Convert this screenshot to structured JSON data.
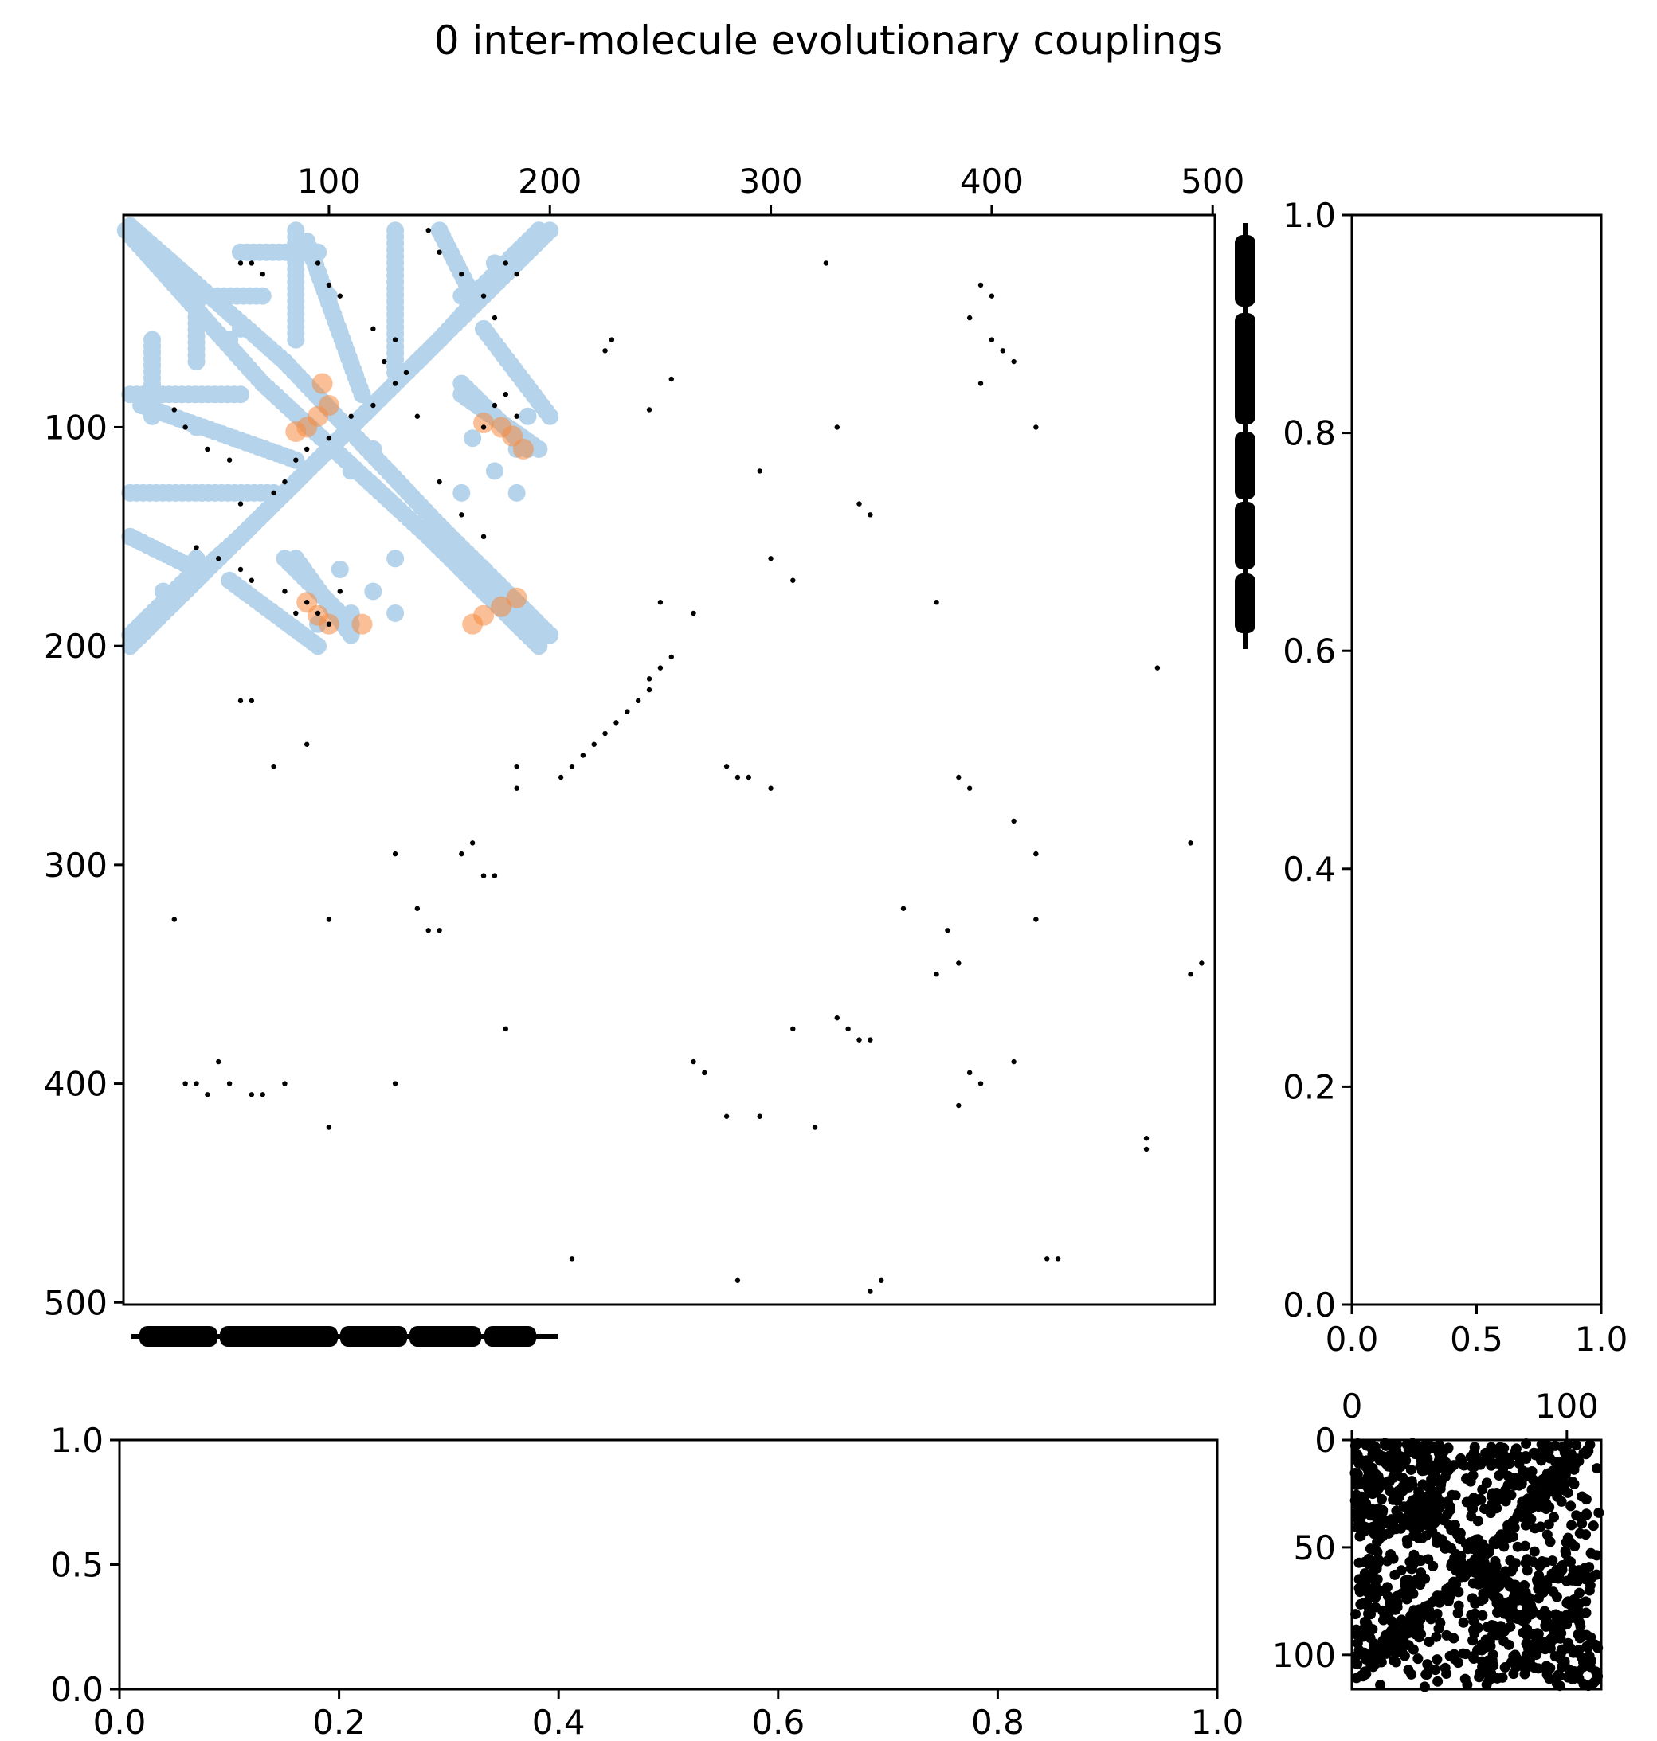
{
  "title": "0 inter-molecule evolutionary couplings",
  "colors": {
    "contact": "#b5d3ea",
    "coupling": "#f58a40",
    "ec": "#000000",
    "axis": "#000000"
  },
  "chart_data": [
    {
      "id": "main",
      "type": "scatter",
      "title": "0 inter-molecule evolutionary couplings",
      "xlim": [
        7,
        501
      ],
      "ylim": [
        501,
        3
      ],
      "x_axis_position": "top",
      "xticks": [
        100,
        200,
        300,
        400,
        500
      ],
      "yticks": [
        100,
        200,
        300,
        400,
        500
      ],
      "series": [
        {
          "role": "contact",
          "color": "#b5d3ea",
          "segments": [
            [
              10,
              8,
              80,
              70
            ],
            [
              80,
              70,
              150,
              145
            ],
            [
              150,
              145,
              200,
              195
            ],
            [
              10,
              195,
              60,
              150
            ],
            [
              60,
              150,
              140,
              70
            ],
            [
              140,
              70,
              200,
              10
            ],
            [
              90,
              15,
              115,
              85
            ],
            [
              150,
              10,
              165,
              40
            ],
            [
              165,
              40,
              195,
              10
            ],
            [
              10,
              85,
              60,
              85
            ],
            [
              10,
              130,
              75,
              130
            ],
            [
              80,
              160,
              110,
              190
            ],
            [
              165,
              170,
              195,
              195
            ],
            [
              170,
              55,
              200,
              95
            ],
            [
              160,
              85,
              195,
              110
            ],
            [
              60,
              20,
              95,
              20
            ],
            [
              35,
              40,
              70,
              40
            ]
          ],
          "points": [
            [
              20,
              95
            ],
            [
              40,
              100
            ],
            [
              55,
              60
            ],
            [
              120,
              110
            ],
            [
              130,
              160
            ],
            [
              175,
              120
            ],
            [
              185,
              130
            ],
            [
              110,
              185
            ],
            [
              95,
              190
            ],
            [
              105,
              165
            ],
            [
              175,
              95
            ],
            [
              40,
              160
            ],
            [
              25,
              175
            ]
          ]
        },
        {
          "role": "coupling",
          "color": "#f58a40",
          "points": [
            [
              90,
              100
            ],
            [
              95,
              95
            ],
            [
              100,
              90
            ],
            [
              97,
              80
            ],
            [
              85,
              102
            ],
            [
              170,
              98
            ],
            [
              178,
              100
            ],
            [
              183,
              104
            ],
            [
              188,
              110
            ],
            [
              90,
              180
            ],
            [
              95,
              186
            ],
            [
              100,
              190
            ],
            [
              115,
              190
            ],
            [
              185,
              178
            ],
            [
              178,
              182
            ],
            [
              170,
              186
            ],
            [
              165,
              190
            ]
          ]
        },
        {
          "role": "ec",
          "color": "#000000",
          "points": [
            [
              30,
              92
            ],
            [
              35,
              100
            ],
            [
              45,
              110
            ],
            [
              55,
              115
            ],
            [
              60,
              135
            ],
            [
              75,
              130
            ],
            [
              80,
              125
            ],
            [
              85,
              115
            ],
            [
              90,
              110
            ],
            [
              100,
              105
            ],
            [
              110,
              95
            ],
            [
              120,
              90
            ],
            [
              125,
              70
            ],
            [
              130,
              80
            ],
            [
              140,
              95
            ],
            [
              150,
              125
            ],
            [
              160,
              140
            ],
            [
              170,
              150
            ],
            [
              60,
              25
            ],
            [
              65,
              25
            ],
            [
              70,
              30
            ],
            [
              95,
              25
            ],
            [
              100,
              35
            ],
            [
              105,
              40
            ],
            [
              120,
              55
            ],
            [
              130,
              60
            ],
            [
              135,
              75
            ],
            [
              145,
              10
            ],
            [
              150,
              20
            ],
            [
              160,
              30
            ],
            [
              170,
              40
            ],
            [
              175,
              50
            ],
            [
              180,
              25
            ],
            [
              185,
              30
            ],
            [
              40,
              155
            ],
            [
              50,
              160
            ],
            [
              60,
              165
            ],
            [
              65,
              170
            ],
            [
              80,
              175
            ],
            [
              85,
              185
            ],
            [
              90,
              180
            ],
            [
              95,
              185
            ],
            [
              100,
              190
            ],
            [
              105,
              175
            ],
            [
              170,
              100
            ],
            [
              175,
              90
            ],
            [
              180,
              85
            ],
            [
              185,
              95
            ],
            [
              225,
              65
            ],
            [
              255,
              78
            ],
            [
              245,
              92
            ],
            [
              265,
              185
            ],
            [
              250,
              180
            ],
            [
              245,
              220
            ],
            [
              240,
              225
            ],
            [
              235,
              230
            ],
            [
              230,
              235
            ],
            [
              225,
              240
            ],
            [
              220,
              245
            ],
            [
              215,
              250
            ],
            [
              210,
              255
            ],
            [
              205,
              260
            ],
            [
              255,
              205
            ],
            [
              250,
              210
            ],
            [
              245,
              215
            ],
            [
              228,
              60
            ],
            [
              325,
              25
            ],
            [
              345,
              140
            ],
            [
              340,
              135
            ],
            [
              330,
              100
            ],
            [
              295,
              120
            ],
            [
              300,
              160
            ],
            [
              310,
              170
            ],
            [
              395,
              35
            ],
            [
              400,
              40
            ],
            [
              405,
              65
            ],
            [
              410,
              70
            ],
            [
              390,
              50
            ],
            [
              395,
              80
            ],
            [
              400,
              60
            ],
            [
              420,
              100
            ],
            [
              475,
              210
            ],
            [
              490,
              290
            ],
            [
              495,
              345
            ],
            [
              490,
              350
            ],
            [
              385,
              260
            ],
            [
              390,
              265
            ],
            [
              375,
              180
            ],
            [
              380,
              330
            ],
            [
              385,
              345
            ],
            [
              375,
              350
            ],
            [
              360,
              320
            ],
            [
              410,
              280
            ],
            [
              420,
              295
            ],
            [
              420,
              325
            ],
            [
              390,
              395
            ],
            [
              395,
              400
            ],
            [
              410,
              390
            ],
            [
              385,
              410
            ],
            [
              470,
              430
            ],
            [
              470,
              425
            ],
            [
              425,
              480
            ],
            [
              430,
              480
            ],
            [
              335,
              375
            ],
            [
              340,
              380
            ],
            [
              345,
              380
            ],
            [
              330,
              370
            ],
            [
              310,
              375
            ],
            [
              265,
              390
            ],
            [
              270,
              395
            ],
            [
              280,
              415
            ],
            [
              295,
              415
            ],
            [
              320,
              420
            ],
            [
              285,
              490
            ],
            [
              345,
              495
            ],
            [
              350,
              490
            ],
            [
              210,
              480
            ],
            [
              65,
              225
            ],
            [
              60,
              225
            ],
            [
              75,
              255
            ],
            [
              90,
              245
            ],
            [
              100,
              325
            ],
            [
              130,
              295
            ],
            [
              140,
              320
            ],
            [
              145,
              330
            ],
            [
              150,
              330
            ],
            [
              160,
              295
            ],
            [
              165,
              290
            ],
            [
              170,
              305
            ],
            [
              175,
              305
            ],
            [
              180,
              375
            ],
            [
              185,
              255
            ],
            [
              185,
              265
            ],
            [
              30,
              325
            ],
            [
              35,
              400
            ],
            [
              40,
              400
            ],
            [
              45,
              405
            ],
            [
              50,
              390
            ],
            [
              55,
              400
            ],
            [
              65,
              405
            ],
            [
              70,
              405
            ],
            [
              80,
              400
            ],
            [
              100,
              420
            ],
            [
              130,
              400
            ],
            [
              280,
              255
            ],
            [
              285,
              260
            ],
            [
              290,
              260
            ],
            [
              300,
              265
            ]
          ]
        }
      ]
    },
    {
      "id": "right-top",
      "type": "scatter",
      "xlim": [
        0,
        1.0
      ],
      "ylim": [
        0,
        1.0
      ],
      "xticks": [
        "0.0",
        "0.5",
        "1.0"
      ],
      "yticks": [
        "0.0",
        "0.2",
        "0.4",
        "0.6",
        "0.8",
        "1.0"
      ]
    },
    {
      "id": "bottom-left",
      "type": "scatter",
      "xlim": [
        0,
        1.0
      ],
      "ylim": [
        0,
        1.0
      ],
      "xticks": [
        "0.0",
        "0.2",
        "0.4",
        "0.6",
        "0.8",
        "1.0"
      ],
      "yticks": [
        "0.0",
        "0.5",
        "1.0"
      ]
    },
    {
      "id": "inset",
      "type": "scatter",
      "xlim": [
        0,
        116
      ],
      "ylim": [
        116,
        0
      ],
      "xticks": [
        "0",
        "100"
      ],
      "yticks": [
        "0",
        "50",
        "100"
      ]
    }
  ]
}
